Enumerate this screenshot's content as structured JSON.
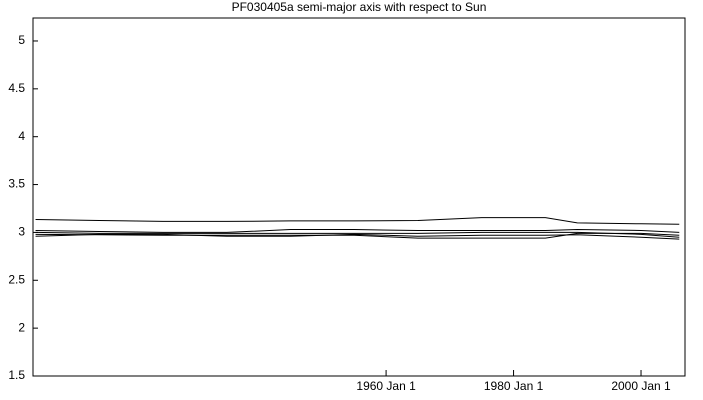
{
  "chart_data": {
    "type": "line",
    "title": "PF030405a semi-major axis with respect to Sun",
    "x": [
      1905,
      1915,
      1925,
      1935,
      1945,
      1955,
      1965,
      1975,
      1985,
      1990,
      2000,
      2006
    ],
    "series": [
      {
        "color": "#000000",
        "values": [
          3.135,
          3.125,
          3.115,
          3.115,
          3.12,
          3.12,
          3.125,
          3.155,
          3.155,
          3.1,
          3.09,
          3.085
        ]
      },
      {
        "color": "#000000",
        "values": [
          3.02,
          3.01,
          3.0,
          3.0,
          3.03,
          3.03,
          3.02,
          3.02,
          3.02,
          3.03,
          3.02,
          3.0
        ]
      },
      {
        "color": "#000000",
        "values": [
          2.98,
          2.975,
          2.97,
          2.97,
          2.97,
          2.97,
          2.94,
          2.94,
          2.94,
          2.99,
          2.99,
          2.97
        ]
      },
      {
        "color": "#000000",
        "values": [
          2.96,
          2.98,
          2.98,
          2.96,
          2.96,
          2.98,
          2.96,
          2.97,
          2.97,
          2.975,
          2.95,
          2.93
        ]
      },
      {
        "color": "#000000",
        "values": [
          3.0,
          2.99,
          2.99,
          2.99,
          2.99,
          2.99,
          2.99,
          3.0,
          3.0,
          3.0,
          2.98,
          2.95
        ]
      }
    ],
    "xlim": [
      1904.6,
      2006.9
    ],
    "xticks": [
      {
        "value": 1960,
        "label": "1960 Jan 1"
      },
      {
        "value": 1980,
        "label": "1980 Jan 1"
      },
      {
        "value": 2000,
        "label": "2000 Jan 1"
      }
    ],
    "ylim": [
      1.5,
      5.24
    ],
    "yticks": [
      1.5,
      2,
      2.5,
      3,
      3.5,
      4,
      4.5,
      5
    ]
  }
}
